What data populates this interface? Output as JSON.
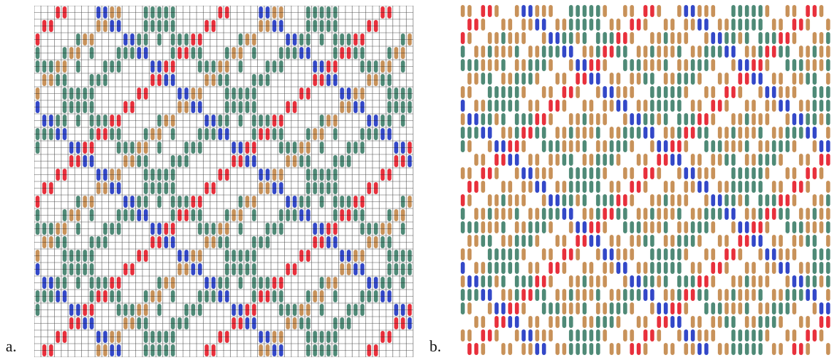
{
  "labels": {
    "a": "a.",
    "b": "b."
  },
  "colors": {
    "teal": "#4f8a77",
    "red": "#e8303c",
    "blue": "#3348c8",
    "tan": "#c8925a",
    "grid": "#1e1e1e",
    "paper": "#ffffff"
  }
}
